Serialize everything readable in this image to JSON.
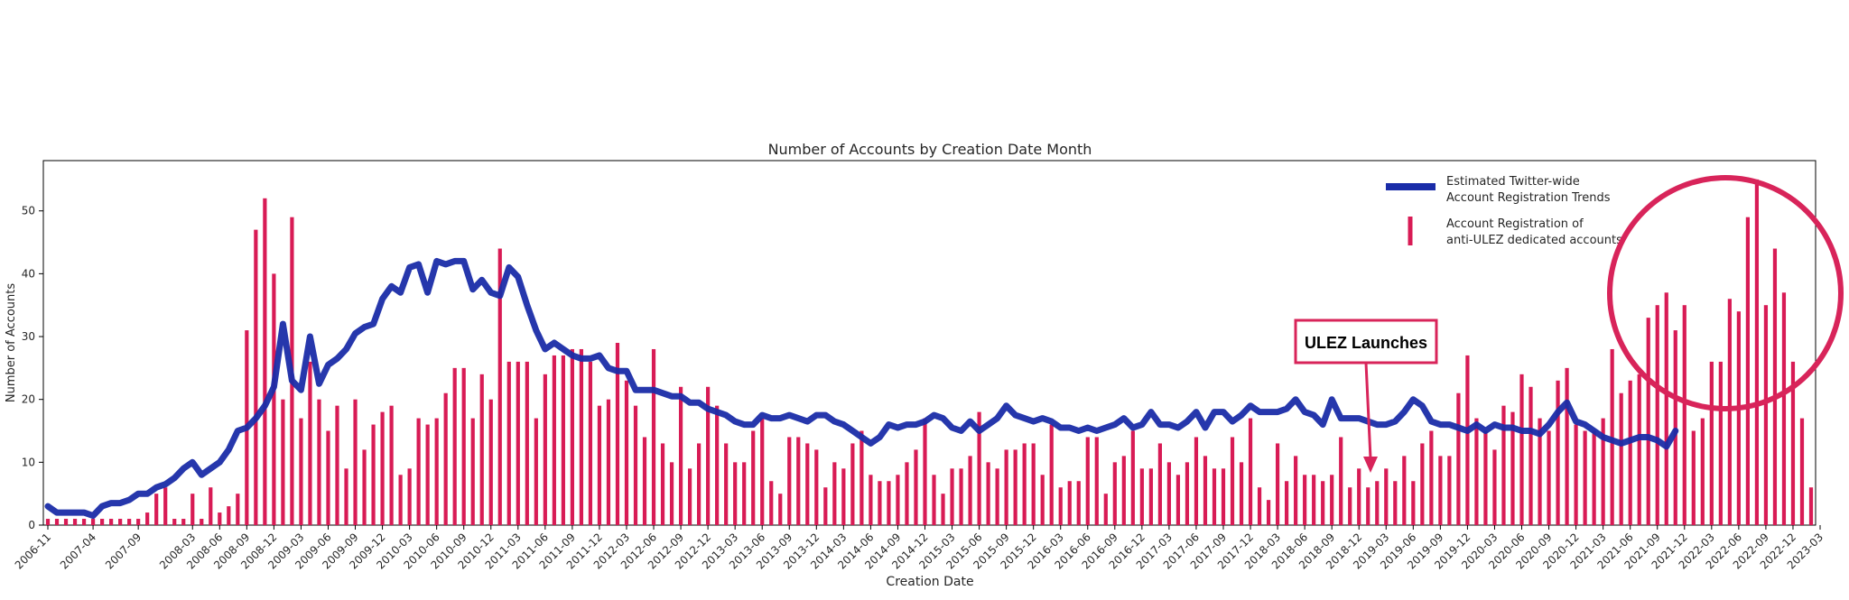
{
  "chart_data": {
    "type": "bar",
    "title": "Number of Accounts by Creation Date Month",
    "xlabel": "Creation Date",
    "ylabel": "Number of Accounts",
    "ylim": [
      0,
      58
    ],
    "yticks": [
      0,
      10,
      20,
      30,
      40,
      50
    ],
    "grid": false,
    "legend_position": "top-right",
    "start_month": "2006-11",
    "xtick_labels": [
      "2006-11",
      "2007-04",
      "2007-09",
      "2008-03",
      "2008-06",
      "2008-09",
      "2008-12",
      "2009-03",
      "2009-06",
      "2009-09",
      "2009-12",
      "2010-03",
      "2010-06",
      "2010-09",
      "2010-12",
      "2011-03",
      "2011-06",
      "2011-09",
      "2011-12",
      "2012-03",
      "2012-06",
      "2012-09",
      "2012-12",
      "2013-03",
      "2013-06",
      "2013-09",
      "2013-12",
      "2014-03",
      "2014-06",
      "2014-09",
      "2014-12",
      "2015-03",
      "2015-06",
      "2015-09",
      "2015-12",
      "2016-03",
      "2016-06",
      "2016-09",
      "2016-12",
      "2017-03",
      "2017-06",
      "2017-09",
      "2017-12",
      "2018-03",
      "2018-06",
      "2018-09",
      "2018-12",
      "2019-03",
      "2019-06",
      "2019-09",
      "2019-12",
      "2020-03",
      "2020-06",
      "2020-09",
      "2020-12",
      "2021-03",
      "2021-06",
      "2021-09",
      "2021-12",
      "2022-03",
      "2022-06",
      "2022-09",
      "2022-12",
      "2023-03"
    ],
    "series": [
      {
        "name": "Account Registration of anti-ULEZ dedicated accounts",
        "type": "bar",
        "color": "#d81b55",
        "values": [
          1,
          1,
          1,
          1,
          1,
          1,
          1,
          1,
          1,
          1,
          1,
          2,
          5,
          6,
          1,
          1,
          5,
          1,
          6,
          2,
          3,
          5,
          31,
          47,
          52,
          40,
          20,
          49,
          17,
          26,
          20,
          15,
          19,
          9,
          20,
          12,
          16,
          18,
          19,
          8,
          9,
          17,
          16,
          17,
          21,
          25,
          25,
          17,
          24,
          20,
          44,
          26,
          26,
          26,
          17,
          24,
          27,
          27,
          28,
          28,
          26,
          19,
          20,
          29,
          23,
          19,
          14,
          28,
          13,
          10,
          22,
          9,
          13,
          22,
          19,
          13,
          10,
          10,
          15,
          17,
          7,
          5,
          14,
          14,
          13,
          12,
          6,
          10,
          9,
          13,
          15,
          8,
          7,
          7,
          8,
          10,
          12,
          17,
          8,
          5,
          9,
          9,
          11,
          18,
          10,
          9,
          12,
          12,
          13,
          13,
          8,
          16,
          6,
          7,
          7,
          14,
          14,
          5,
          10,
          11,
          15,
          9,
          9,
          13,
          10,
          8,
          10,
          14,
          11,
          9,
          9,
          14,
          10,
          17,
          6,
          4,
          13,
          7,
          11,
          8,
          8,
          7,
          8,
          14,
          6,
          9,
          6,
          7,
          9,
          7,
          11,
          7,
          13,
          15,
          11,
          11,
          21,
          27,
          17,
          15,
          12,
          19,
          18,
          24,
          22,
          17,
          15,
          23,
          25,
          16,
          15,
          15,
          17,
          28,
          21,
          23,
          24,
          33,
          35,
          37,
          31,
          35,
          15,
          17,
          26,
          26,
          36,
          34,
          49,
          55,
          35,
          44,
          37,
          26,
          17,
          6
        ]
      },
      {
        "name": "Estimated Twitter-wide Account Registration Trends",
        "type": "line",
        "color": "#1a2ca8",
        "values": [
          3,
          2,
          2,
          2,
          2,
          1.5,
          3,
          3.5,
          3.5,
          4,
          5,
          5,
          6,
          6.5,
          7.5,
          9,
          10,
          8,
          9,
          10,
          12,
          15,
          15.5,
          17,
          19,
          22,
          32,
          23,
          21.5,
          30,
          22.5,
          25.5,
          26.5,
          28,
          30.5,
          31.5,
          32,
          36,
          38,
          37,
          41,
          41.5,
          37,
          42,
          41.5,
          42,
          42,
          37.5,
          39,
          37,
          36.5,
          41,
          39.5,
          35,
          31,
          28,
          29,
          28,
          27,
          26.5,
          26.5,
          27,
          25,
          24.5,
          24.5,
          21.5,
          21.5,
          21.5,
          21,
          20.5,
          20.5,
          19.5,
          19.5,
          18.5,
          18,
          17.5,
          16.5,
          16,
          16,
          17.5,
          17,
          17,
          17.5,
          17,
          16.5,
          17.5,
          17.5,
          16.5,
          16,
          15,
          14,
          13,
          14,
          16,
          15.5,
          16,
          16,
          16.5,
          17.5,
          17,
          15.5,
          15,
          16.5,
          15,
          16,
          17,
          19,
          17.5,
          17,
          16.5,
          17,
          16.5,
          15.5,
          15.5,
          15,
          15.5,
          15,
          15.5,
          16,
          17,
          15.5,
          16,
          18,
          16,
          16,
          15.5,
          16.5,
          18,
          15.5,
          18,
          18,
          16.5,
          17.5,
          19,
          18,
          18,
          18,
          18.5,
          20,
          18,
          17.5,
          16,
          20,
          17,
          17,
          17,
          16.5,
          16,
          16,
          16.5,
          18,
          20,
          19,
          16.5,
          16,
          16,
          15.5,
          15,
          16,
          15,
          16,
          15.5,
          15.5,
          15,
          15,
          14.5,
          16,
          18,
          19.5,
          16.5,
          16,
          15,
          14,
          13.5,
          13,
          13.5,
          14,
          14,
          13.5,
          12.5,
          15
        ]
      }
    ],
    "annotations": {
      "callout": "ULEZ Launches",
      "callout_month": "2019-04",
      "legend_line_label_1": "Estimated Twitter-wide",
      "legend_line_label_2": "Account Registration Trends",
      "legend_bar_label_1": "Account Registration of",
      "legend_bar_label_2": "anti-ULEZ dedicated accounts"
    }
  },
  "colors": {
    "bar": "#d81b55",
    "line": "#1a2ca8",
    "highlight_circle": "#d8245a",
    "callout_border": "#d8245a"
  }
}
